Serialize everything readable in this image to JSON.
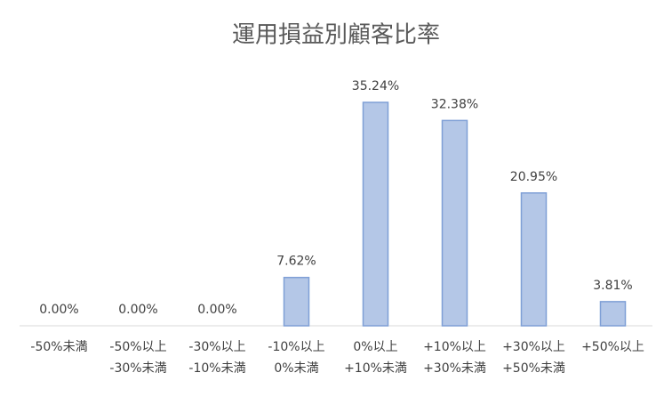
{
  "chart_data": {
    "type": "bar",
    "title": "運用損益別顧客比率",
    "categories": [
      [
        "-50%未満"
      ],
      [
        "-50%以上",
        "-30%未満"
      ],
      [
        "-30%以上",
        "-10%未満"
      ],
      [
        "-10%以上",
        "0%未満"
      ],
      [
        "0%以上",
        "+10%未満"
      ],
      [
        "+10%以上",
        "+30%未満"
      ],
      [
        "+30%以上",
        "+50%未満"
      ],
      [
        "+50%以上"
      ]
    ],
    "values": [
      0,
      0,
      0,
      7.62,
      35.24,
      32.38,
      20.95,
      3.81
    ],
    "value_labels": [
      "0.00%",
      "0.00%",
      "0.00%",
      "7.62%",
      "35.24%",
      "32.38%",
      "20.95%",
      "3.81%"
    ],
    "color": "#b4c7e7",
    "edgecolor": "#7f9fd6"
  }
}
